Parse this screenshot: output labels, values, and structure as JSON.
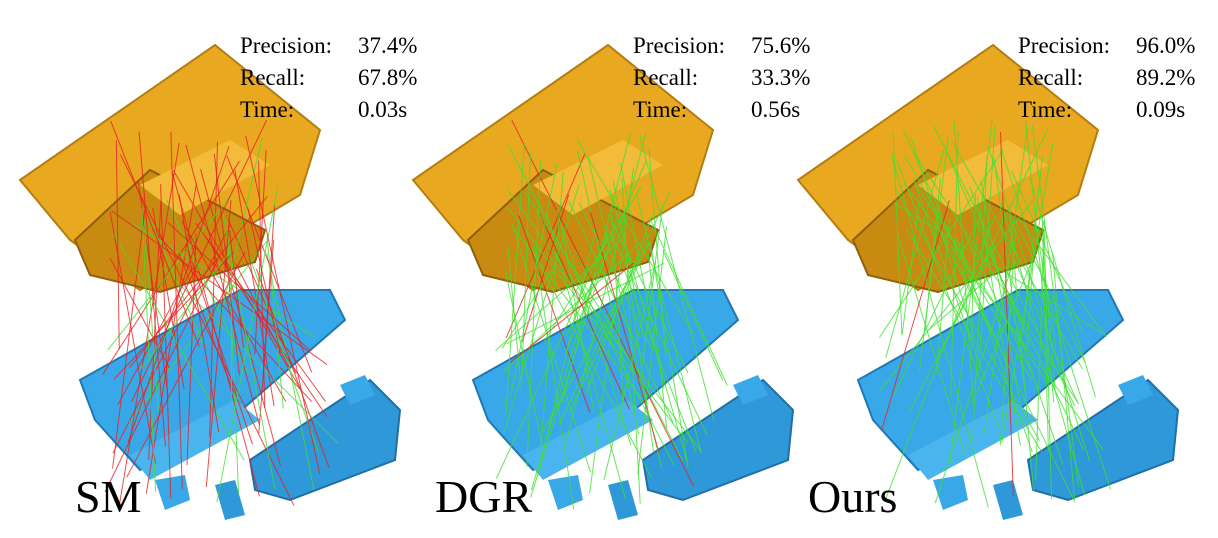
{
  "panels": [
    {
      "method": "SM",
      "metrics": [
        {
          "label": "Precision:",
          "value": "37.4%"
        },
        {
          "label": "Recall:",
          "value": "67.8%"
        },
        {
          "label": "Time:",
          "value": "0.03s"
        }
      ]
    },
    {
      "method": "DGR",
      "metrics": [
        {
          "label": "Precision:",
          "value": "75.6%"
        },
        {
          "label": "Recall:",
          "value": "33.3%"
        },
        {
          "label": "Time:",
          "value": "0.56s"
        }
      ]
    },
    {
      "method": "Ours",
      "metrics": [
        {
          "label": "Precision:",
          "value": "96.0%"
        },
        {
          "label": "Recall:",
          "value": "89.2%"
        },
        {
          "label": "Time:",
          "value": "0.09s"
        }
      ]
    }
  ]
}
